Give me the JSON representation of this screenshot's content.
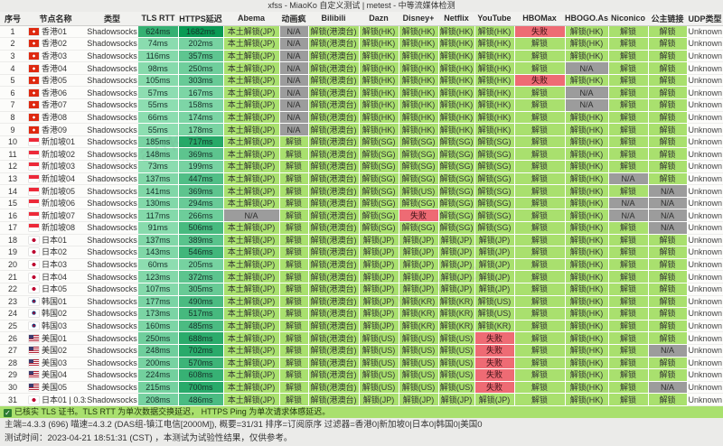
{
  "title": "xfss - MiaoKo 自定义测试 | metest - 中等流媒体检测",
  "watermark": "MiaoKo",
  "columns": [
    "序号",
    "节点名称",
    "类型",
    "TLS RTT",
    "HTTPS延迟",
    "Abema",
    "动画疯",
    "Bilibili",
    "Dazn",
    "Disney+",
    "Netflix",
    "YouTube",
    "HBOMax",
    "HBOGO.Asia",
    "Niconico",
    "公主链接",
    "UDP类型"
  ],
  "service_keys": [
    "abema",
    "anime",
    "bilibili",
    "dazn",
    "disney",
    "netflix",
    "youtube",
    "hbomax",
    "hbogo",
    "niconico",
    "princess",
    "udp"
  ],
  "colors": {
    "unlock_green": "#a9e06e",
    "na_gray": "#9c9c9c",
    "fail_red": "#ee6b74",
    "latency_light": "#96e2b7",
    "latency_dark": "#0a9a54"
  },
  "rows": [
    {
      "idx": "1",
      "flag": "hk",
      "name": "香港01",
      "type": "Shadowsocks",
      "tls": 624,
      "https": 1682,
      "cells": [
        "本土解锁(JP)",
        "N/A",
        "解锁(港澳台)",
        "解锁(HK)",
        "解锁(HK)",
        "解锁(HK)",
        "解锁(HK)",
        "失败",
        "解锁(HK)",
        "解锁",
        "解锁",
        "Unknown"
      ]
    },
    {
      "idx": "2",
      "flag": "hk",
      "name": "香港02",
      "type": "Shadowsocks",
      "tls": 74,
      "https": 202,
      "cells": [
        "本土解锁(JP)",
        "N/A",
        "解锁(港澳台)",
        "解锁(HK)",
        "解锁(HK)",
        "解锁(HK)",
        "解锁(HK)",
        "解锁",
        "解锁(HK)",
        "解锁",
        "解锁",
        "Unknown"
      ]
    },
    {
      "idx": "3",
      "flag": "hk",
      "name": "香港03",
      "type": "Shadowsocks",
      "tls": 116,
      "https": 357,
      "cells": [
        "本土解锁(JP)",
        "N/A",
        "解锁(港澳台)",
        "解锁(HK)",
        "解锁(HK)",
        "解锁(HK)",
        "解锁(HK)",
        "解锁",
        "解锁(HK)",
        "解锁",
        "解锁",
        "Unknown"
      ]
    },
    {
      "idx": "4",
      "flag": "hk",
      "name": "香港04",
      "type": "Shadowsocks",
      "tls": 98,
      "https": 250,
      "cells": [
        "本土解锁(JP)",
        "N/A",
        "解锁(港澳台)",
        "解锁(HK)",
        "解锁(HK)",
        "解锁(HK)",
        "解锁(HK)",
        "解锁",
        "N/A",
        "解锁",
        "解锁",
        "Unknown"
      ]
    },
    {
      "idx": "5",
      "flag": "hk",
      "name": "香港05",
      "type": "Shadowsocks",
      "tls": 105,
      "https": 303,
      "cells": [
        "本土解锁(JP)",
        "N/A",
        "解锁(港澳台)",
        "解锁(HK)",
        "解锁(HK)",
        "解锁(HK)",
        "解锁(HK)",
        "失败",
        "解锁(HK)",
        "解锁",
        "解锁",
        "Unknown"
      ]
    },
    {
      "idx": "6",
      "flag": "hk",
      "name": "香港06",
      "type": "Shadowsocks",
      "tls": 57,
      "https": 167,
      "cells": [
        "本土解锁(JP)",
        "N/A",
        "解锁(港澳台)",
        "解锁(HK)",
        "解锁(HK)",
        "解锁(HK)",
        "解锁(HK)",
        "解锁",
        "N/A",
        "解锁",
        "解锁",
        "Unknown"
      ]
    },
    {
      "idx": "7",
      "flag": "hk",
      "name": "香港07",
      "type": "Shadowsocks",
      "tls": 55,
      "https": 158,
      "cells": [
        "本土解锁(JP)",
        "N/A",
        "解锁(港澳台)",
        "解锁(HK)",
        "解锁(HK)",
        "解锁(HK)",
        "解锁(HK)",
        "解锁",
        "N/A",
        "解锁",
        "解锁",
        "Unknown"
      ]
    },
    {
      "idx": "8",
      "flag": "hk",
      "name": "香港08",
      "type": "Shadowsocks",
      "tls": 66,
      "https": 174,
      "cells": [
        "本土解锁(JP)",
        "N/A",
        "解锁(港澳台)",
        "解锁(HK)",
        "解锁(HK)",
        "解锁(HK)",
        "解锁(HK)",
        "解锁",
        "解锁(HK)",
        "解锁",
        "解锁",
        "Unknown"
      ]
    },
    {
      "idx": "9",
      "flag": "hk",
      "name": "香港09",
      "type": "Shadowsocks",
      "tls": 55,
      "https": 178,
      "cells": [
        "本土解锁(JP)",
        "N/A",
        "解锁(港澳台)",
        "解锁(HK)",
        "解锁(HK)",
        "解锁(HK)",
        "解锁(HK)",
        "解锁",
        "解锁(HK)",
        "解锁",
        "解锁",
        "Unknown"
      ]
    },
    {
      "idx": "10",
      "flag": "sg",
      "name": "新加坡01",
      "type": "Shadowsocks",
      "tls": 185,
      "https": 717,
      "cells": [
        "本土解锁(JP)",
        "解锁",
        "解锁(港澳台)",
        "解锁(SG)",
        "解锁(SG)",
        "解锁(SG)",
        "解锁(SG)",
        "解锁",
        "解锁(HK)",
        "解锁",
        "解锁",
        "Unknown"
      ]
    },
    {
      "idx": "11",
      "flag": "sg",
      "name": "新加坡02",
      "type": "Shadowsocks",
      "tls": 148,
      "https": 369,
      "cells": [
        "本土解锁(JP)",
        "解锁",
        "解锁(港澳台)",
        "解锁(SG)",
        "解锁(SG)",
        "解锁(SG)",
        "解锁(SG)",
        "解锁",
        "解锁(HK)",
        "解锁",
        "解锁",
        "Unknown"
      ]
    },
    {
      "idx": "12",
      "flag": "sg",
      "name": "新加坡03",
      "type": "Shadowsocks",
      "tls": 73,
      "https": 199,
      "cells": [
        "本土解锁(JP)",
        "解锁",
        "解锁(港澳台)",
        "解锁(SG)",
        "解锁(SG)",
        "解锁(SG)",
        "解锁(SG)",
        "解锁",
        "解锁(HK)",
        "解锁",
        "解锁",
        "Unknown"
      ]
    },
    {
      "idx": "13",
      "flag": "sg",
      "name": "新加坡04",
      "type": "Shadowsocks",
      "tls": 137,
      "https": 447,
      "cells": [
        "本土解锁(JP)",
        "解锁",
        "解锁(港澳台)",
        "解锁(SG)",
        "解锁(SG)",
        "解锁(SG)",
        "解锁(SG)",
        "解锁",
        "解锁(HK)",
        "N/A",
        "解锁",
        "Unknown"
      ]
    },
    {
      "idx": "14",
      "flag": "sg",
      "name": "新加坡05",
      "type": "Shadowsocks",
      "tls": 141,
      "https": 369,
      "cells": [
        "本土解锁(JP)",
        "解锁",
        "解锁(港澳台)",
        "解锁(SG)",
        "解锁(US)",
        "解锁(SG)",
        "解锁(SG)",
        "解锁",
        "解锁(HK)",
        "解锁",
        "N/A",
        "Unknown"
      ]
    },
    {
      "idx": "15",
      "flag": "sg",
      "name": "新加坡06",
      "type": "Shadowsocks",
      "tls": 130,
      "https": 294,
      "cells": [
        "本土解锁(JP)",
        "解锁",
        "解锁(港澳台)",
        "解锁(SG)",
        "解锁(SG)",
        "解锁(SG)",
        "解锁(SG)",
        "解锁",
        "解锁(HK)",
        "N/A",
        "N/A",
        "Unknown"
      ]
    },
    {
      "idx": "16",
      "flag": "sg",
      "name": "新加坡07",
      "type": "Shadowsocks",
      "tls": 117,
      "https": 266,
      "cells": [
        "N/A",
        "解锁",
        "解锁(港澳台)",
        "解锁(SG)",
        "失败",
        "解锁(SG)",
        "解锁(SG)",
        "解锁",
        "解锁(HK)",
        "N/A",
        "N/A",
        "Unknown"
      ]
    },
    {
      "idx": "17",
      "flag": "sg",
      "name": "新加坡08",
      "type": "Shadowsocks",
      "tls": 91,
      "https": 506,
      "cells": [
        "本土解锁(JP)",
        "解锁",
        "解锁(港澳台)",
        "解锁(SG)",
        "解锁(SG)",
        "解锁(SG)",
        "解锁(SG)",
        "解锁",
        "解锁(HK)",
        "解锁",
        "N/A",
        "Unknown"
      ]
    },
    {
      "idx": "18",
      "flag": "jp",
      "name": "日本01",
      "type": "Shadowsocks",
      "tls": 137,
      "https": 389,
      "cells": [
        "本土解锁(JP)",
        "解锁",
        "解锁(港澳台)",
        "解锁(JP)",
        "解锁(JP)",
        "解锁(JP)",
        "解锁(JP)",
        "解锁",
        "解锁(HK)",
        "解锁",
        "解锁",
        "Unknown"
      ]
    },
    {
      "idx": "19",
      "flag": "jp",
      "name": "日本02",
      "type": "Shadowsocks",
      "tls": 143,
      "https": 546,
      "cells": [
        "本土解锁(JP)",
        "解锁",
        "解锁(港澳台)",
        "解锁(JP)",
        "解锁(JP)",
        "解锁(JP)",
        "解锁(JP)",
        "解锁",
        "解锁(HK)",
        "解锁",
        "解锁",
        "Unknown"
      ]
    },
    {
      "idx": "20",
      "flag": "jp",
      "name": "日本03",
      "type": "Shadowsocks",
      "tls": 60,
      "https": 205,
      "cells": [
        "本土解锁(JP)",
        "解锁",
        "解锁(港澳台)",
        "解锁(JP)",
        "解锁(JP)",
        "解锁(JP)",
        "解锁(JP)",
        "解锁",
        "解锁(HK)",
        "解锁",
        "解锁",
        "Unknown"
      ]
    },
    {
      "idx": "21",
      "flag": "jp",
      "name": "日本04",
      "type": "Shadowsocks",
      "tls": 123,
      "https": 372,
      "cells": [
        "本土解锁(JP)",
        "解锁",
        "解锁(港澳台)",
        "解锁(JP)",
        "解锁(JP)",
        "解锁(JP)",
        "解锁(JP)",
        "解锁",
        "解锁(HK)",
        "解锁",
        "解锁",
        "Unknown"
      ]
    },
    {
      "idx": "22",
      "flag": "jp",
      "name": "日本05",
      "type": "Shadowsocks",
      "tls": 107,
      "https": 305,
      "cells": [
        "本土解锁(JP)",
        "解锁",
        "解锁(港澳台)",
        "解锁(JP)",
        "解锁(JP)",
        "解锁(JP)",
        "解锁(JP)",
        "解锁",
        "解锁(HK)",
        "解锁",
        "解锁",
        "Unknown"
      ]
    },
    {
      "idx": "23",
      "flag": "kr",
      "name": "韩国01",
      "type": "Shadowsocks",
      "tls": 177,
      "https": 490,
      "cells": [
        "本土解锁(JP)",
        "解锁",
        "解锁(港澳台)",
        "解锁(JP)",
        "解锁(KR)",
        "解锁(KR)",
        "解锁(US)",
        "解锁",
        "解锁(HK)",
        "解锁",
        "解锁",
        "Unknown"
      ]
    },
    {
      "idx": "24",
      "flag": "kr",
      "name": "韩国02",
      "type": "Shadowsocks",
      "tls": 173,
      "https": 517,
      "cells": [
        "本土解锁(JP)",
        "解锁",
        "解锁(港澳台)",
        "解锁(JP)",
        "解锁(KR)",
        "解锁(KR)",
        "解锁(US)",
        "解锁",
        "解锁(HK)",
        "解锁",
        "解锁",
        "Unknown"
      ]
    },
    {
      "idx": "25",
      "flag": "kr",
      "name": "韩国03",
      "type": "Shadowsocks",
      "tls": 160,
      "https": 485,
      "cells": [
        "本土解锁(JP)",
        "解锁",
        "解锁(港澳台)",
        "解锁(JP)",
        "解锁(KR)",
        "解锁(KR)",
        "解锁(KR)",
        "解锁",
        "解锁(HK)",
        "解锁",
        "解锁",
        "Unknown"
      ]
    },
    {
      "idx": "26",
      "flag": "us",
      "name": "美国01",
      "type": "Shadowsocks",
      "tls": 250,
      "https": 688,
      "cells": [
        "本土解锁(JP)",
        "解锁",
        "解锁(港澳台)",
        "解锁(US)",
        "解锁(US)",
        "解锁(US)",
        "失败",
        "解锁",
        "解锁(HK)",
        "解锁",
        "解锁",
        "Unknown"
      ]
    },
    {
      "idx": "27",
      "flag": "us",
      "name": "美国02",
      "type": "Shadowsocks",
      "tls": 248,
      "https": 702,
      "cells": [
        "本土解锁(JP)",
        "解锁",
        "解锁(港澳台)",
        "解锁(US)",
        "解锁(US)",
        "解锁(US)",
        "失败",
        "解锁",
        "解锁(HK)",
        "解锁",
        "N/A",
        "Unknown"
      ]
    },
    {
      "idx": "28",
      "flag": "us",
      "name": "美国03",
      "type": "Shadowsocks",
      "tls": 200,
      "https": 570,
      "cells": [
        "本土解锁(JP)",
        "解锁",
        "解锁(港澳台)",
        "解锁(US)",
        "解锁(US)",
        "解锁(US)",
        "失败",
        "解锁",
        "解锁(HK)",
        "解锁",
        "解锁",
        "Unknown"
      ]
    },
    {
      "idx": "29",
      "flag": "us",
      "name": "美国04",
      "type": "Shadowsocks",
      "tls": 224,
      "https": 608,
      "cells": [
        "本土解锁(JP)",
        "解锁",
        "解锁(港澳台)",
        "解锁(US)",
        "解锁(US)",
        "解锁(US)",
        "失败",
        "解锁",
        "解锁(HK)",
        "解锁",
        "解锁",
        "Unknown"
      ]
    },
    {
      "idx": "30",
      "flag": "us",
      "name": "美国05",
      "type": "Shadowsocks",
      "tls": 215,
      "https": 700,
      "cells": [
        "本土解锁(JP)",
        "解锁",
        "解锁(港澳台)",
        "解锁(US)",
        "解锁(US)",
        "解锁(US)",
        "失败",
        "解锁",
        "解锁(HK)",
        "解锁",
        "N/A",
        "Unknown"
      ]
    },
    {
      "idx": "31",
      "flag": "jp",
      "name": "日本01 | 0.3x",
      "type": "Shadowsocks",
      "tls": 208,
      "https": 486,
      "cells": [
        "本土解锁(JP)",
        "解锁",
        "解锁(港澳台)",
        "解锁(JP)",
        "解锁(JP)",
        "解锁(JP)",
        "解锁(JP)",
        "解锁",
        "解锁(HK)",
        "解锁",
        "解锁",
        "Unknown"
      ]
    }
  ],
  "footer": {
    "check_icon": "✓",
    "notice": "已核实 TLS 证书。TLS RTT 为单次数据交换延迟， HTTPS Ping 为单次请求体感延迟。",
    "meta": "主端=4.3.3 (696) 喵速=4.3.2 (DAS组-镇江电信[2000M]), 概要=31/31 排序=订阅原序 过滤器=香港0|新加坡0|日本0|韩国0|美国0",
    "time": "测试时间：2023-04-21 18:51:31 (CST) ，本测试为试验性结果，仅供参考。"
  }
}
